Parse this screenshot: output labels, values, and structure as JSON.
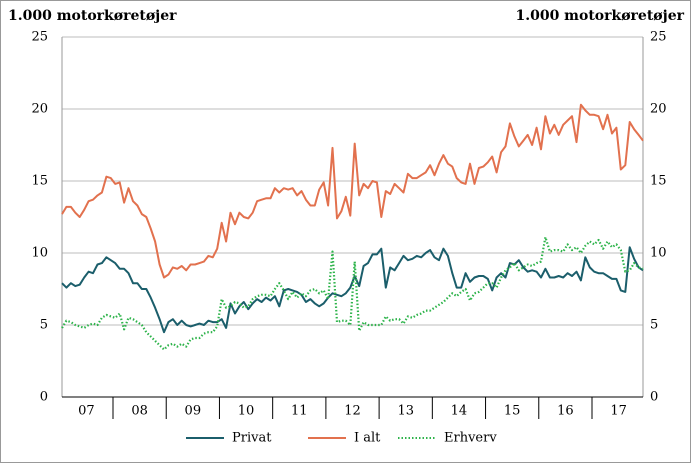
{
  "chart_data": {
    "type": "line",
    "y_axis_title": "1.000 motorkøretøjer",
    "y2_axis_title": "1.000 motorkøretøjer",
    "categories": [
      null,
      null,
      null,
      null,
      null,
      null,
      "07",
      null,
      null,
      null,
      null,
      null,
      null,
      null,
      null,
      null,
      null,
      null,
      "08",
      null,
      null,
      null,
      null,
      null,
      null,
      null,
      null,
      null,
      null,
      null,
      "09",
      null,
      null,
      null,
      null,
      null,
      null,
      null,
      null,
      null,
      null,
      null,
      "10",
      null,
      null,
      null,
      null,
      null,
      null,
      null,
      null,
      null,
      null,
      null,
      "11",
      null,
      null,
      null,
      null,
      null,
      null,
      null,
      null,
      null,
      null,
      null,
      "12",
      null,
      null,
      null,
      null,
      null,
      null,
      null,
      null,
      null,
      null,
      null,
      "13",
      null,
      null,
      null,
      null,
      null,
      null,
      null,
      null,
      null,
      null,
      null,
      "14",
      null,
      null,
      null,
      null,
      null,
      null,
      null,
      null,
      null,
      null,
      null,
      "15",
      null,
      null,
      null,
      null,
      null,
      null,
      null,
      null,
      null,
      null,
      null,
      "16",
      null,
      null,
      null,
      null,
      null,
      null,
      null,
      null,
      null,
      null,
      null,
      "17",
      null,
      null,
      null,
      null,
      null
    ],
    "series": [
      {
        "name": "Privat",
        "color": "#1b5e6b",
        "style": "solid",
        "values": [
          7.9,
          7.6,
          7.9,
          7.7,
          7.8,
          8.3,
          8.7,
          8.6,
          9.2,
          9.3,
          9.7,
          9.5,
          9.3,
          8.9,
          8.9,
          8.6,
          7.9,
          7.9,
          7.5,
          7.5,
          6.9,
          6.2,
          5.4,
          4.5,
          5.2,
          5.4,
          5.0,
          5.3,
          5.0,
          4.9,
          5.0,
          5.1,
          5.0,
          5.3,
          5.2,
          5.2,
          5.4,
          4.8,
          6.5,
          5.8,
          6.3,
          6.6,
          6.1,
          6.5,
          6.8,
          6.6,
          6.9,
          6.7,
          7.0,
          6.3,
          7.4,
          7.5,
          7.4,
          7.3,
          7.1,
          6.6,
          6.8,
          6.5,
          6.3,
          6.5,
          6.9,
          7.2,
          7.1,
          7.0,
          7.2,
          7.6,
          8.4,
          7.7,
          9.1,
          9.3,
          9.9,
          9.9,
          10.3,
          7.6,
          9.0,
          8.8,
          9.3,
          9.8,
          9.5,
          9.6,
          9.8,
          9.7,
          10.0,
          10.2,
          9.7,
          9.5,
          10.3,
          9.8,
          8.6,
          7.6,
          7.6,
          8.6,
          8.0,
          8.3,
          8.4,
          8.4,
          8.2,
          7.4,
          8.3,
          8.6,
          8.3,
          9.3,
          9.2,
          9.5,
          9.0,
          8.7,
          8.8,
          8.7,
          8.3,
          8.9,
          8.3,
          8.3,
          8.4,
          8.3,
          8.6,
          8.4,
          8.7,
          8.1,
          9.7,
          9.0,
          8.7,
          8.6,
          8.6,
          8.4,
          8.2,
          8.2,
          7.4,
          7.3,
          10.4,
          9.6,
          9.0,
          8.8
        ]
      },
      {
        "name": "I alt",
        "color": "#e2714e",
        "style": "solid",
        "values": [
          12.7,
          13.2,
          13.2,
          12.8,
          12.5,
          13.0,
          13.6,
          13.7,
          14.0,
          14.2,
          15.3,
          15.2,
          14.8,
          14.9,
          13.5,
          14.5,
          13.6,
          13.3,
          12.7,
          12.5,
          11.7,
          10.8,
          9.2,
          8.3,
          8.5,
          9.0,
          8.9,
          9.1,
          8.8,
          9.2,
          9.2,
          9.3,
          9.4,
          9.8,
          9.7,
          10.3,
          12.1,
          10.8,
          12.8,
          12.0,
          12.8,
          12.5,
          12.4,
          12.8,
          13.6,
          13.7,
          13.8,
          13.8,
          14.5,
          14.2,
          14.5,
          14.4,
          14.5,
          14.0,
          14.3,
          13.7,
          13.3,
          13.3,
          14.4,
          14.9,
          13.3,
          17.3,
          12.4,
          12.9,
          13.9,
          12.6,
          17.6,
          14.0,
          14.8,
          14.5,
          15.0,
          14.9,
          12.5,
          14.3,
          14.1,
          14.8,
          14.5,
          14.2,
          15.5,
          15.2,
          15.2,
          15.4,
          15.6,
          16.1,
          15.4,
          16.2,
          16.8,
          16.2,
          16.0,
          15.2,
          14.9,
          14.8,
          16.2,
          14.8,
          15.9,
          16.0,
          16.3,
          16.7,
          15.6,
          17.0,
          17.4,
          19.0,
          18.1,
          17.4,
          17.8,
          18.2,
          17.5,
          18.7,
          17.2,
          19.5,
          18.3,
          18.9,
          18.2,
          18.9,
          19.2,
          19.5,
          17.7,
          20.3,
          19.9,
          19.6,
          19.6,
          19.5,
          18.6,
          19.6,
          18.3,
          18.7,
          15.8,
          16.1,
          19.1,
          18.6,
          18.2,
          17.8
        ]
      },
      {
        "name": "Erhverv",
        "color": "#2db34a",
        "style": "dotted",
        "values": [
          4.8,
          5.3,
          5.2,
          5.0,
          4.9,
          4.8,
          5.0,
          5.1,
          5.0,
          5.5,
          5.7,
          5.6,
          5.5,
          5.8,
          4.7,
          5.5,
          5.4,
          5.2,
          5.0,
          4.5,
          4.2,
          3.9,
          3.6,
          3.3,
          3.6,
          3.7,
          3.5,
          3.7,
          3.5,
          4.0,
          4.1,
          4.1,
          4.4,
          4.5,
          4.5,
          4.9,
          6.8,
          6.2,
          6.3,
          6.6,
          6.5,
          6.2,
          6.3,
          6.8,
          7.0,
          7.1,
          7.1,
          7.0,
          7.5,
          7.9,
          7.4,
          6.8,
          7.3,
          6.9,
          7.2,
          7.0,
          7.4,
          7.5,
          7.2,
          7.4,
          6.8,
          10.1,
          5.2,
          5.3,
          5.3,
          5.0,
          9.4,
          4.6,
          5.2,
          5.0,
          5.0,
          5.0,
          5.0,
          5.6,
          5.3,
          5.4,
          5.4,
          5.1,
          5.6,
          5.5,
          5.7,
          5.8,
          6.0,
          6.0,
          6.2,
          6.4,
          6.6,
          6.9,
          7.2,
          7.0,
          7.3,
          7.5,
          6.7,
          7.2,
          7.3,
          7.6,
          7.9,
          7.9,
          7.6,
          8.3,
          8.8,
          9.0,
          9.3,
          8.8,
          9.0,
          9.2,
          9.1,
          9.3,
          9.4,
          11.1,
          10.1,
          10.2,
          10.2,
          10.1,
          10.6,
          10.2,
          10.4,
          10.0,
          10.5,
          10.8,
          10.6,
          10.9,
          10.3,
          10.8,
          10.4,
          10.6,
          10.2,
          8.7,
          8.8,
          9.3,
          9.0,
          8.9
        ]
      }
    ],
    "ylim": [
      0,
      25
    ],
    "yticks": [
      0,
      5,
      10,
      15,
      20,
      25
    ],
    "y2lim": [
      0,
      25
    ],
    "y2ticks": [
      0,
      5,
      10,
      15,
      20,
      25
    ],
    "grid": true,
    "legend": "bottom"
  }
}
